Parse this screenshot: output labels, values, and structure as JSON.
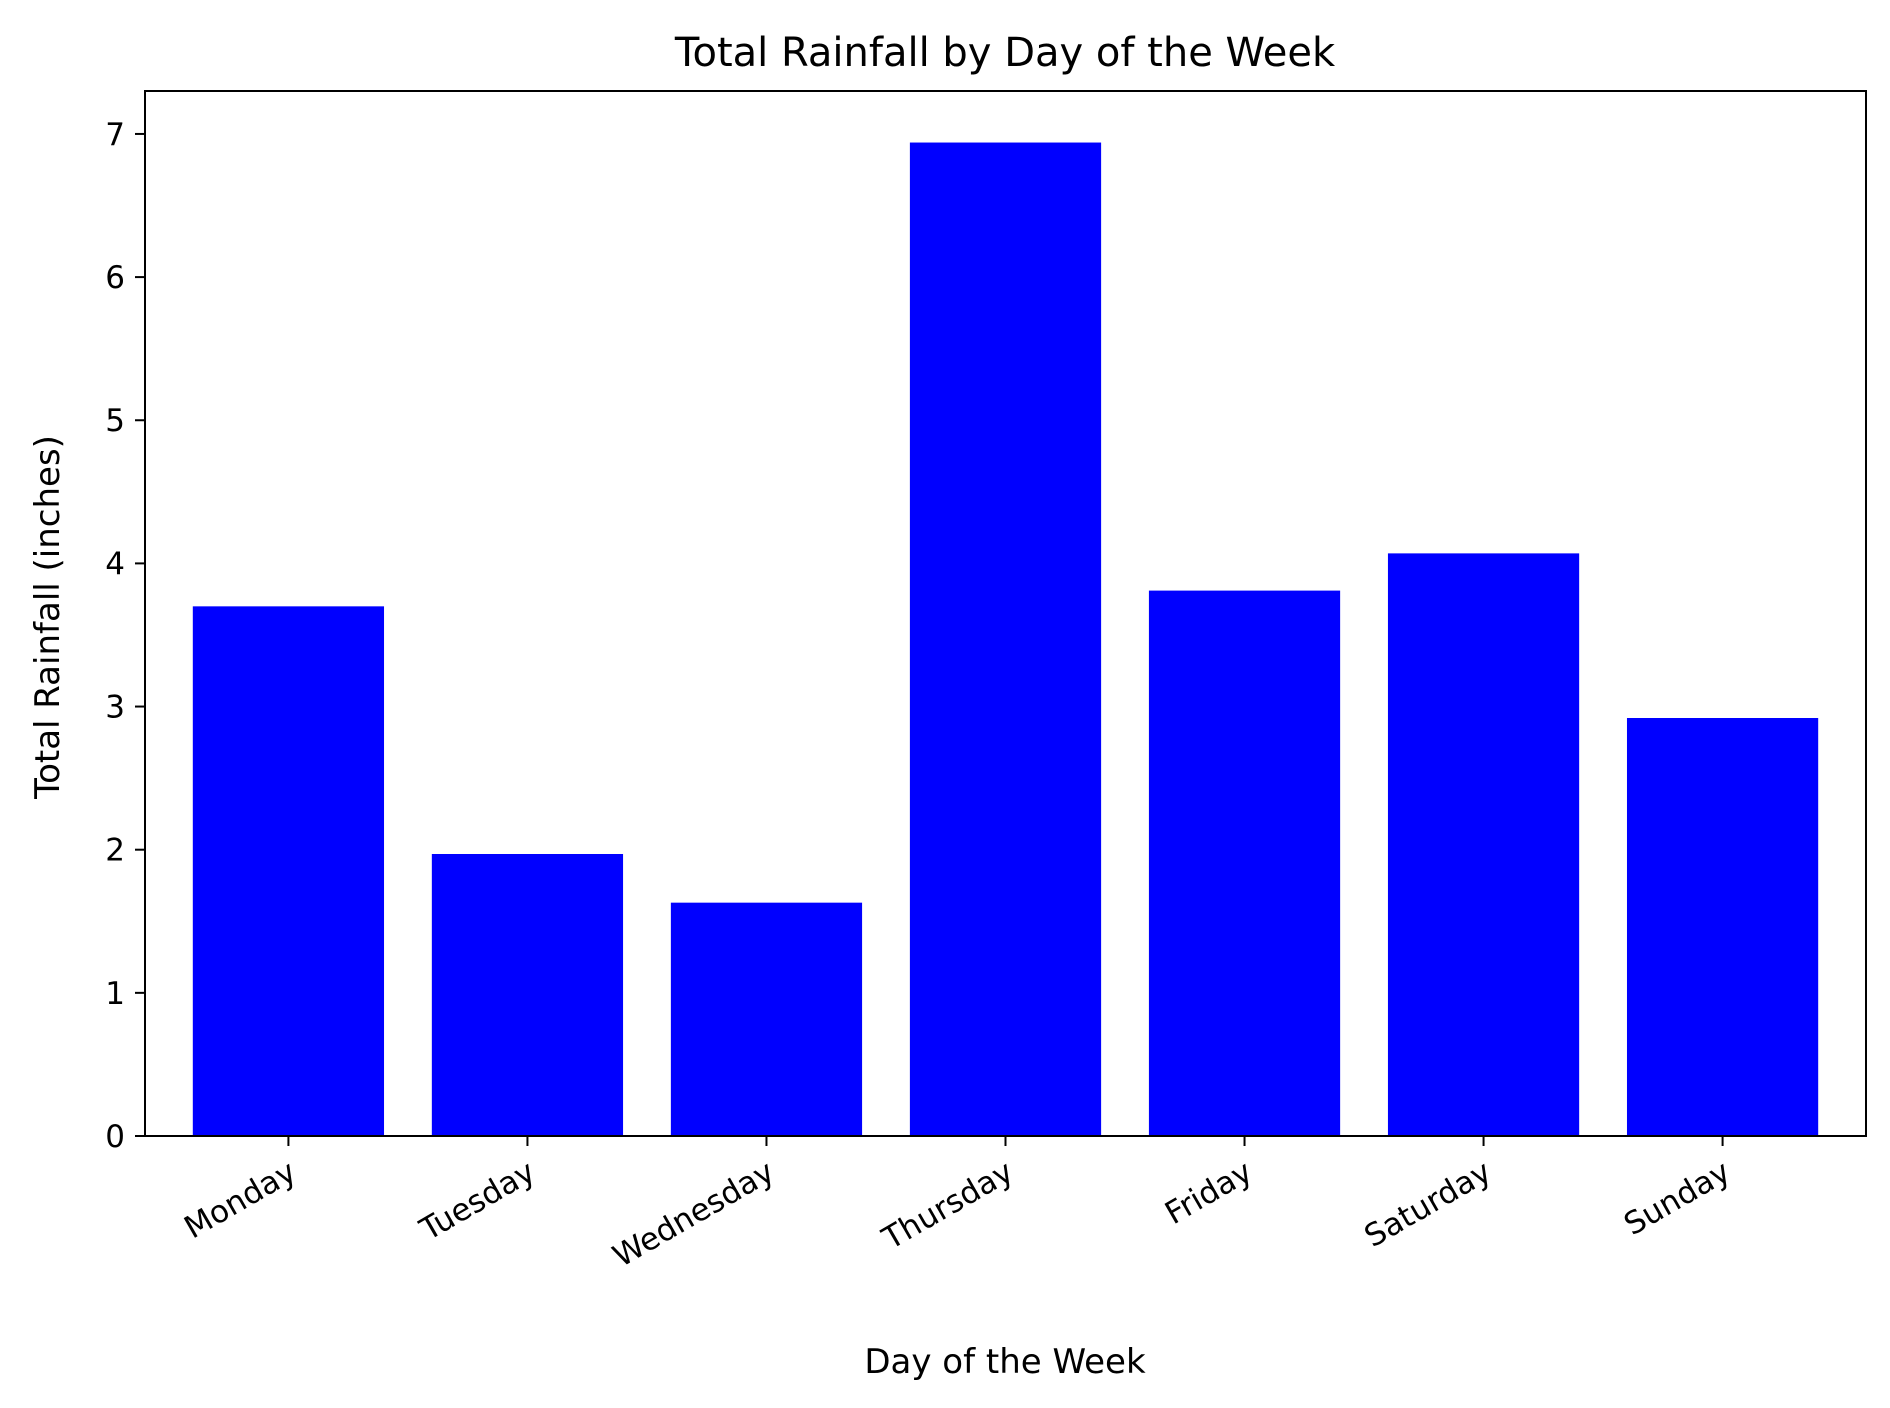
{
  "chart_data": {
    "type": "bar",
    "title": "Total Rainfall by Day of the Week",
    "xlabel": "Day of the Week",
    "ylabel": "Total Rainfall (inches)",
    "categories": [
      "Monday",
      "Tuesday",
      "Wednesday",
      "Thursday",
      "Friday",
      "Saturday",
      "Sunday"
    ],
    "values": [
      3.7,
      1.97,
      1.63,
      6.94,
      3.81,
      4.07,
      2.92
    ],
    "ylim": [
      0,
      7.3
    ],
    "yticks": [
      0,
      1,
      2,
      3,
      4,
      5,
      6,
      7
    ],
    "bar_color": "#0000ff",
    "grid": false,
    "legend": "none"
  }
}
